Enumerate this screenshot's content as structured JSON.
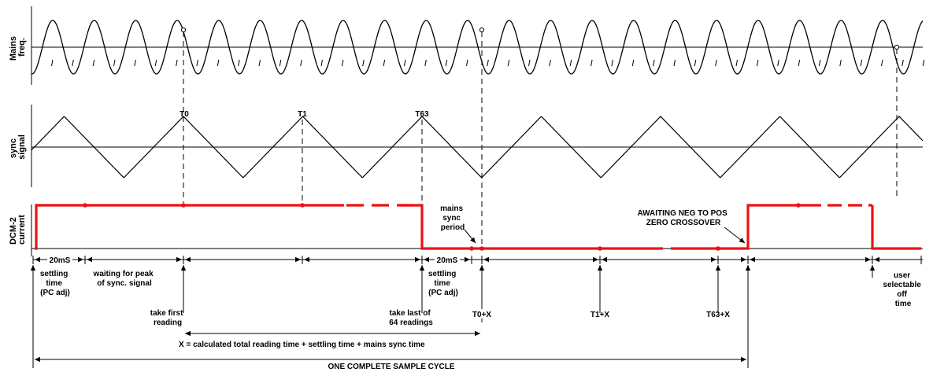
{
  "axis_labels": {
    "mains": [
      "Mains",
      "freq."
    ],
    "sync": [
      "sync",
      "signal"
    ],
    "current": [
      "DCM-2",
      "current"
    ]
  },
  "peak_labels": {
    "t0": "T0",
    "t1": "T1",
    "t63": "T63"
  },
  "annotations": {
    "mains_sync_period": [
      "mains",
      "sync",
      "period"
    ],
    "awaiting": [
      "AWAITING NEG TO POS",
      "ZERO CROSSOVER"
    ]
  },
  "intervals": {
    "first_20ms": "20mS",
    "second_20ms": "20mS"
  },
  "event_labels": {
    "settling_1": [
      "settling",
      "time",
      "(PC adj)"
    ],
    "waiting": [
      "waiting for peak",
      "of sync. signal"
    ],
    "take_first": [
      "take first",
      "reading"
    ],
    "take_last": [
      "take last of",
      "64 readings"
    ],
    "settling_2": [
      "settling",
      "time",
      "(PC adj)"
    ],
    "t0x": "T0+X",
    "t1x": "T1+X",
    "t63x": "T63+X",
    "user_off": [
      "user",
      "selectable",
      "off",
      "time"
    ]
  },
  "formula": "X = calculated total reading time + settling time + mains sync time",
  "cycle_label": "ONE COMPLETE SAMPLE CYCLE",
  "colors": {
    "current_trace": "#ee1111",
    "ink": "#000000"
  }
}
